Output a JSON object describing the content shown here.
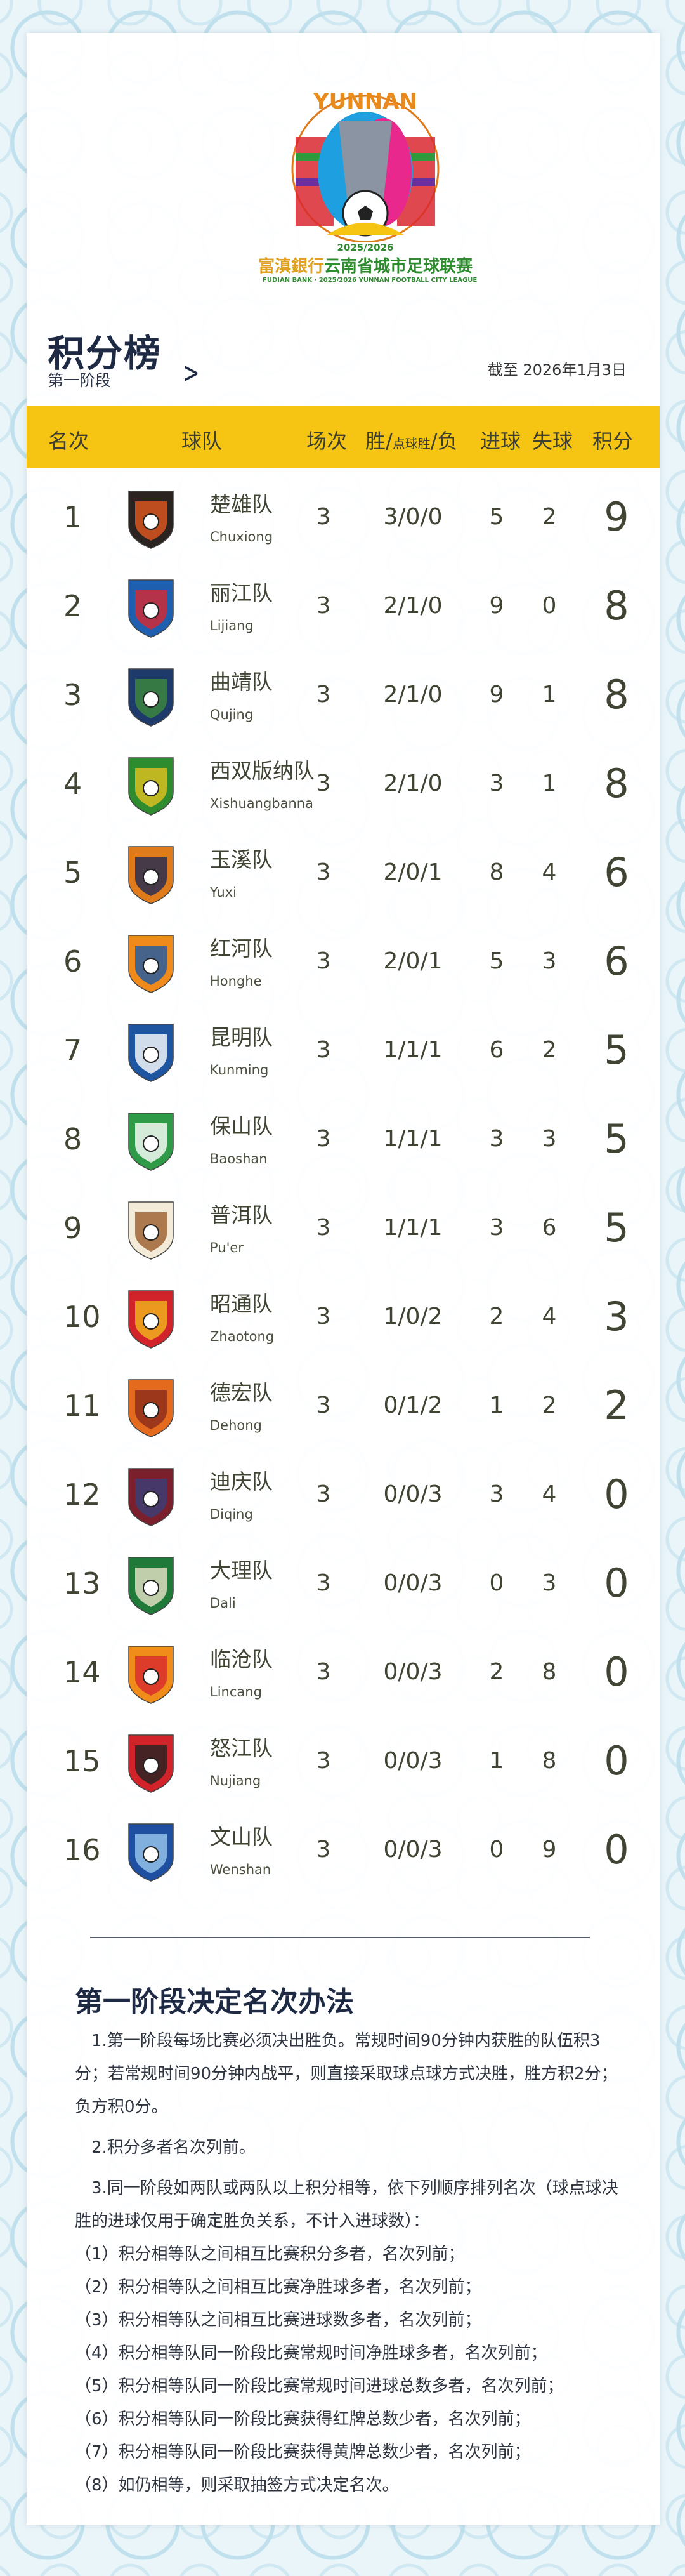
{
  "logo": {
    "wordmark": "YUNNAN",
    "season": "2025/2026",
    "sponsor": "富滇銀行",
    "league_zh": "云南省城市足球联赛",
    "league_en": "FUDIAN BANK · 2025/2026 YUNNAN FOOTBALL CITY LEAGUE"
  },
  "header": {
    "title": "积分榜",
    "subtitle": "第一阶段",
    "as_of": "截至 2026年1月3日"
  },
  "table": {
    "columns": {
      "rank": "名次",
      "team": "球队",
      "played": "场次",
      "wdl_a": "胜/",
      "wdl_b": "点球胜",
      "wdl_c": "/负",
      "gf": "进球",
      "ga": "失球",
      "pts": "积分"
    },
    "accent": "#f6c514",
    "rows": [
      {
        "rank": "1",
        "zh": "楚雄队",
        "en": "Chuxiong",
        "p": "3",
        "wdl": "3/0/0",
        "gf": "5",
        "ga": "2",
        "pts": "9",
        "c1": "#2a2320",
        "c2": "#e2571f"
      },
      {
        "rank": "2",
        "zh": "丽江队",
        "en": "Lijiang",
        "p": "3",
        "wdl": "2/1/0",
        "gf": "9",
        "ga": "0",
        "pts": "8",
        "c1": "#1f5fb0",
        "c2": "#d9282f"
      },
      {
        "rank": "3",
        "zh": "曲靖队",
        "en": "Qujing",
        "p": "3",
        "wdl": "2/1/0",
        "gf": "9",
        "ga": "1",
        "pts": "8",
        "c1": "#1d3a6b",
        "c2": "#3e8a3c"
      },
      {
        "rank": "4",
        "zh": "西双版纳队",
        "en": "Xishuangbanna",
        "p": "3",
        "wdl": "2/1/0",
        "gf": "3",
        "ga": "1",
        "pts": "8",
        "c1": "#2e8b2e",
        "c2": "#e4c21e"
      },
      {
        "rank": "5",
        "zh": "玉溪队",
        "en": "Yuxi",
        "p": "3",
        "wdl": "2/0/1",
        "gf": "8",
        "ga": "4",
        "pts": "6",
        "c1": "#e07b1c",
        "c2": "#1f2b55"
      },
      {
        "rank": "6",
        "zh": "红河队",
        "en": "Honghe",
        "p": "3",
        "wdl": "2/0/1",
        "gf": "5",
        "ga": "3",
        "pts": "6",
        "c1": "#f08a1a",
        "c2": "#1b5aa8"
      },
      {
        "rank": "7",
        "zh": "昆明队",
        "en": "Kunming",
        "p": "3",
        "wdl": "1/1/1",
        "gf": "6",
        "ga": "2",
        "pts": "5",
        "c1": "#1e55a0",
        "c2": "#ffffff"
      },
      {
        "rank": "8",
        "zh": "保山队",
        "en": "Baoshan",
        "p": "3",
        "wdl": "1/1/1",
        "gf": "3",
        "ga": "3",
        "pts": "5",
        "c1": "#2f9a48",
        "c2": "#ffffff"
      },
      {
        "rank": "9",
        "zh": "普洱队",
        "en": "Pu'er",
        "p": "3",
        "wdl": "1/1/1",
        "gf": "3",
        "ga": "6",
        "pts": "5",
        "c1": "#f3ead8",
        "c2": "#9a5b2a"
      },
      {
        "rank": "10",
        "zh": "昭通队",
        "en": "Zhaotong",
        "p": "3",
        "wdl": "1/0/2",
        "gf": "2",
        "ga": "4",
        "pts": "3",
        "c1": "#d2232a",
        "c2": "#f3b81d"
      },
      {
        "rank": "11",
        "zh": "德宏队",
        "en": "Dehong",
        "p": "3",
        "wdl": "0/1/2",
        "gf": "1",
        "ga": "2",
        "pts": "2",
        "c1": "#e46a1e",
        "c2": "#8a2a1a"
      },
      {
        "rank": "12",
        "zh": "迪庆队",
        "en": "Diqing",
        "p": "3",
        "wdl": "0/0/3",
        "gf": "3",
        "ga": "4",
        "pts": "0",
        "c1": "#7a1f2b",
        "c2": "#3b3f7a"
      },
      {
        "rank": "13",
        "zh": "大理队",
        "en": "Dali",
        "p": "3",
        "wdl": "0/0/3",
        "gf": "0",
        "ga": "3",
        "pts": "0",
        "c1": "#1f7a3a",
        "c2": "#e9e3c8"
      },
      {
        "rank": "14",
        "zh": "临沧队",
        "en": "Lincang",
        "p": "3",
        "wdl": "0/0/3",
        "gf": "2",
        "ga": "8",
        "pts": "0",
        "c1": "#f08c1a",
        "c2": "#d9282f"
      },
      {
        "rank": "15",
        "zh": "怒江队",
        "en": "Nujiang",
        "p": "3",
        "wdl": "0/0/3",
        "gf": "1",
        "ga": "8",
        "pts": "0",
        "c1": "#d2232a",
        "c2": "#222222"
      },
      {
        "rank": "16",
        "zh": "文山队",
        "en": "Wenshan",
        "p": "3",
        "wdl": "0/0/3",
        "gf": "0",
        "ga": "9",
        "pts": "0",
        "c1": "#1f4fa0",
        "c2": "#9bc8ee"
      }
    ]
  },
  "rules": {
    "title": "第一阶段决定名次办法",
    "p1": "1.第一阶段每场比赛必须决出胜负。常规时间90分钟内获胜的队伍积3分；若常规时间90分钟内战平，则直接采取球点球方式决胜，胜方积2分；负方积0分。",
    "p2": "2.积分多者名次列前。",
    "p3": "3.同一阶段如两队或两队以上积分相等，依下列顺序排列名次（球点球决胜的进球仅用于确定胜负关系，不计入进球数）：",
    "items": [
      "（1）积分相等队之间相互比赛积分多者，名次列前；",
      "（2）积分相等队之间相互比赛净胜球多者，名次列前；",
      "（3）积分相等队之间相互比赛进球数多者，名次列前；",
      "（4）积分相等队同一阶段比赛常规时间净胜球多者，名次列前；",
      "（5）积分相等队同一阶段比赛常规时间进球总数多者，名次列前；",
      "（6）积分相等队同一阶段比赛获得红牌总数少者，名次列前；",
      "（7）积分相等队同一阶段比赛获得黄牌总数少者，名次列前；",
      "（8）如仍相等，则采取抽签方式决定名次。"
    ]
  }
}
